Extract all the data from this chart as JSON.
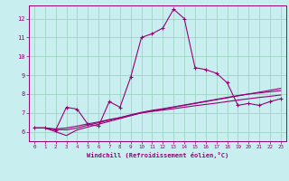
{
  "xlabel": "Windchill (Refroidissement éolien,°C)",
  "background_color": "#c8eef0",
  "grid_color": "#99ccbb",
  "line_color": "#990077",
  "xlim": [
    -0.5,
    23.5
  ],
  "ylim": [
    5.5,
    12.7
  ],
  "yticks": [
    6,
    7,
    8,
    9,
    10,
    11,
    12
  ],
  "xticks": [
    0,
    1,
    2,
    3,
    4,
    5,
    6,
    7,
    8,
    9,
    10,
    11,
    12,
    13,
    14,
    15,
    16,
    17,
    18,
    19,
    20,
    21,
    22,
    23
  ],
  "series": [
    {
      "y": [
        6.2,
        6.2,
        6.1,
        7.3,
        7.2,
        6.4,
        6.3,
        7.6,
        7.3,
        8.9,
        11.0,
        11.2,
        11.5,
        12.5,
        12.0,
        9.4,
        9.3,
        9.1,
        8.6,
        7.4,
        7.5,
        7.4,
        7.6,
        7.75
      ],
      "marker": "+"
    },
    {
      "y": [
        6.2,
        6.2,
        6.0,
        5.8,
        6.1,
        6.25,
        6.4,
        6.55,
        6.7,
        6.85,
        7.0,
        7.1,
        7.2,
        7.3,
        7.4,
        7.5,
        7.6,
        7.7,
        7.8,
        7.9,
        8.0,
        8.1,
        8.2,
        8.3
      ],
      "marker": null
    },
    {
      "y": [
        6.2,
        6.2,
        6.15,
        6.2,
        6.3,
        6.42,
        6.52,
        6.65,
        6.75,
        6.88,
        7.0,
        7.08,
        7.15,
        7.22,
        7.3,
        7.38,
        7.45,
        7.52,
        7.6,
        7.68,
        7.75,
        7.82,
        7.88,
        7.95
      ],
      "marker": null
    },
    {
      "y": [
        6.2,
        6.2,
        6.12,
        6.1,
        6.2,
        6.35,
        6.48,
        6.62,
        6.75,
        6.9,
        7.03,
        7.14,
        7.22,
        7.32,
        7.42,
        7.52,
        7.62,
        7.72,
        7.82,
        7.92,
        8.0,
        8.06,
        8.12,
        8.18
      ],
      "marker": null
    }
  ]
}
